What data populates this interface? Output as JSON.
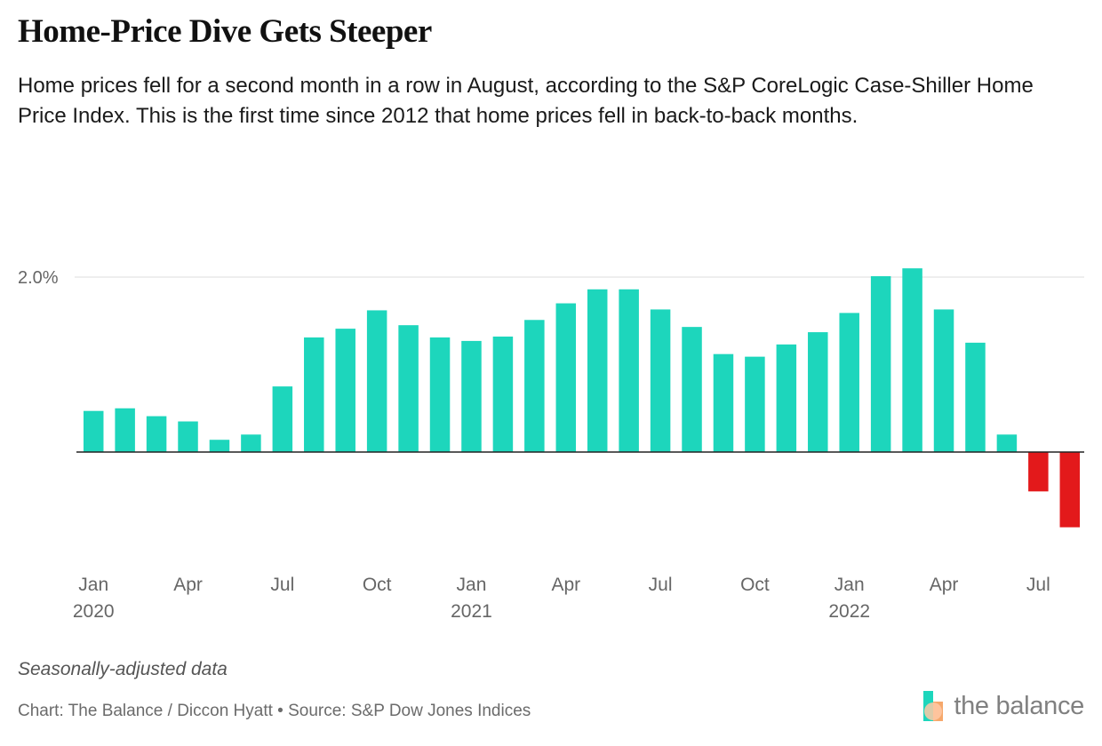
{
  "title": "Home-Price Dive Gets Steeper",
  "subtitle": "Home prices fell for a second month in a row in August, according to the S&P CoreLogic Case-Shiller Home Price Index. This is the first time since 2012 that home prices fell in back-to-back months.",
  "note": "Seasonally-adjusted data",
  "credit": "Chart: The Balance / Diccon Hyatt • Source: S&P Dow Jones Indices",
  "logo": {
    "text": "the balance",
    "icon": "the-balance-logo-icon"
  },
  "colors": {
    "positive": "#1dd6bc",
    "negative": "#e3191b",
    "grid": "#dddddd",
    "axis": "#222222",
    "tick": "#666666"
  },
  "chart_data": {
    "type": "bar",
    "title": "Home-Price Dive Gets Steeper",
    "xlabel": "",
    "ylabel": "",
    "ylim": [
      -1.2,
      2.2
    ],
    "y_ticks": [
      {
        "value": 2.0,
        "label": "2.0%"
      }
    ],
    "grid": true,
    "categories": [
      "Jan 2020",
      "Feb 2020",
      "Mar 2020",
      "Apr 2020",
      "May 2020",
      "Jun 2020",
      "Jul 2020",
      "Aug 2020",
      "Sep 2020",
      "Oct 2020",
      "Nov 2020",
      "Dec 2020",
      "Jan 2021",
      "Feb 2021",
      "Mar 2021",
      "Apr 2021",
      "May 2021",
      "Jun 2021",
      "Jul 2021",
      "Aug 2021",
      "Sep 2021",
      "Oct 2021",
      "Nov 2021",
      "Dec 2021",
      "Jan 2022",
      "Feb 2022",
      "Mar 2022",
      "Apr 2022",
      "May 2022",
      "Jun 2022",
      "Jul 2022",
      "Aug 2022"
    ],
    "values": [
      0.47,
      0.5,
      0.41,
      0.35,
      0.14,
      0.2,
      0.75,
      1.31,
      1.41,
      1.62,
      1.45,
      1.31,
      1.27,
      1.32,
      1.51,
      1.7,
      1.86,
      1.86,
      1.63,
      1.43,
      1.12,
      1.09,
      1.23,
      1.37,
      1.59,
      2.01,
      2.1,
      1.63,
      1.25,
      0.2,
      -0.45,
      -0.86
    ],
    "x_ticks": [
      {
        "index": 0,
        "month": "Jan",
        "year": "2020"
      },
      {
        "index": 3,
        "month": "Apr",
        "year": ""
      },
      {
        "index": 6,
        "month": "Jul",
        "year": ""
      },
      {
        "index": 9,
        "month": "Oct",
        "year": ""
      },
      {
        "index": 12,
        "month": "Jan",
        "year": "2021"
      },
      {
        "index": 15,
        "month": "Apr",
        "year": ""
      },
      {
        "index": 18,
        "month": "Jul",
        "year": ""
      },
      {
        "index": 21,
        "month": "Oct",
        "year": ""
      },
      {
        "index": 24,
        "month": "Jan",
        "year": "2022"
      },
      {
        "index": 27,
        "month": "Apr",
        "year": ""
      },
      {
        "index": 30,
        "month": "Jul",
        "year": ""
      }
    ]
  }
}
